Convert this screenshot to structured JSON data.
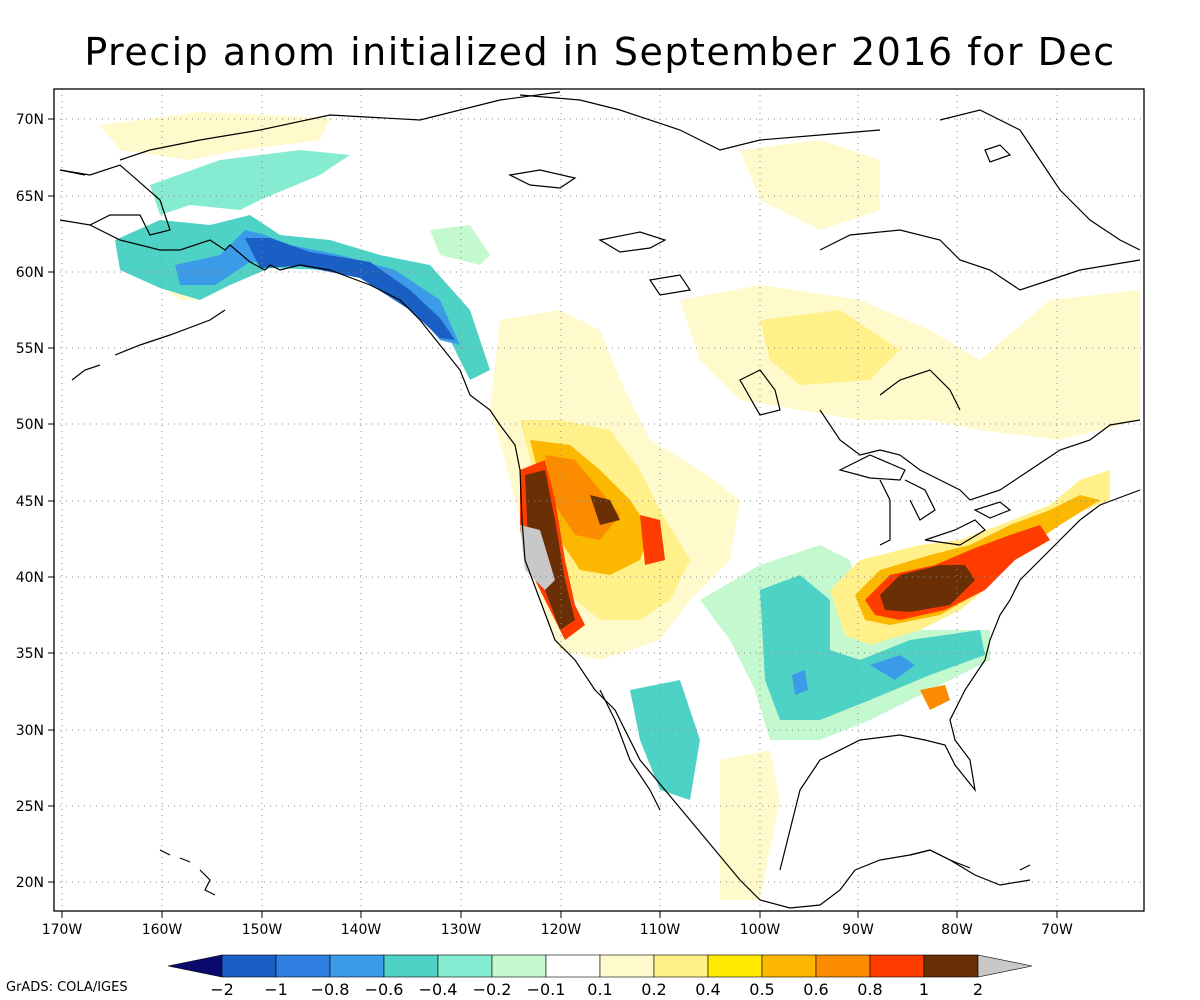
{
  "title": "Precip anom initialized in September 2016 for Dec",
  "credit": "GrADS: COLA/IGES",
  "axes": {
    "lon_labels": [
      "170W",
      "160W",
      "150W",
      "140W",
      "130W",
      "120W",
      "110W",
      "100W",
      "90W",
      "80W",
      "70W"
    ],
    "lat_labels": [
      "70N",
      "65N",
      "60N",
      "55N",
      "50N",
      "45N",
      "40N",
      "35N",
      "30N",
      "25N",
      "20N"
    ],
    "grid": "dotted"
  },
  "colorbar": {
    "labels": [
      "-2",
      "-1",
      "-0.8",
      "-0.6",
      "-0.4",
      "-0.2",
      "-0.1",
      "0.1",
      "0.2",
      "0.4",
      "0.5",
      "0.6",
      "0.8",
      "1",
      "2"
    ],
    "colors": [
      "#0a0a6e",
      "#1a5fc4",
      "#2f7fe0",
      "#3c9be8",
      "#4fd2c6",
      "#86ecd1",
      "#c4f9cf",
      "#ffffff",
      "#fffacb",
      "#fff08a",
      "#ffe900",
      "#fcb800",
      "#fb8c00",
      "#fe3c00",
      "#6a2f05",
      "#c8c8c8"
    ]
  },
  "colors": {
    "coast": "#000000",
    "grid": "#8a8a8a"
  }
}
